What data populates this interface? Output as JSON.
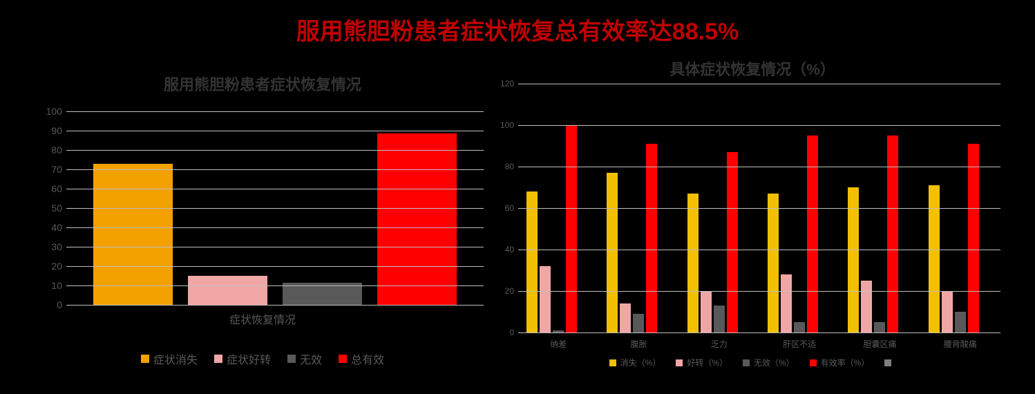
{
  "background_color": "#000000",
  "main_title": {
    "text": "服用熊胆粉患者症状恢复总有效率达88.5%",
    "color": "#c00000",
    "fontsize": 34
  },
  "chart1": {
    "type": "bar",
    "title": "服用熊胆粉患者症状恢复情况",
    "title_color": "#404040",
    "title_fontsize": 22,
    "ymin": 0,
    "ymax": 100,
    "ytick_step": 10,
    "yticks": [
      0,
      10,
      20,
      30,
      40,
      50,
      60,
      70,
      80,
      90,
      100
    ],
    "grid_color": "#bfbfbf",
    "axis_label_color": "#595959",
    "x_axis_label": "症状恢复情况",
    "series": [
      {
        "label": "症状消失",
        "value": 73,
        "color": "#f2a100"
      },
      {
        "label": "症状好转",
        "value": 15,
        "color": "#f1a6a6"
      },
      {
        "label": "无效",
        "value": 11.5,
        "color": "#595959"
      },
      {
        "label": "总有效",
        "value": 88.5,
        "color": "#ff0000"
      }
    ],
    "legend_swatch": true
  },
  "chart2": {
    "type": "grouped-bar",
    "title": "具体症状恢复情况（%）",
    "title_color": "#404040",
    "title_fontsize": 22,
    "ymin": 0,
    "ymax": 120,
    "ytick_step": 20,
    "yticks": [
      0,
      20,
      40,
      60,
      80,
      100,
      120
    ],
    "grid_color": "#bfbfbf",
    "axis_label_color": "#595959",
    "categories": [
      "纳差",
      "腹胀",
      "乏力",
      "肝区不适",
      "胆囊区痛",
      "腰背酸痛"
    ],
    "series": [
      {
        "label": "消失（%）",
        "color": "#f2c000",
        "values": [
          68,
          77,
          67,
          67,
          70,
          71
        ]
      },
      {
        "label": "好转（%）",
        "color": "#f1a6a6",
        "values": [
          32,
          14,
          20,
          28,
          25,
          20
        ]
      },
      {
        "label": "无效（%）",
        "color": "#595959",
        "values": [
          1,
          9,
          13,
          5,
          5,
          10
        ]
      },
      {
        "label": "有效率（%）",
        "color": "#ff0000",
        "values": [
          100,
          91,
          87,
          95,
          95,
          91
        ]
      },
      {
        "label": "",
        "color": "#7f7f7f",
        "values": [
          0,
          0,
          0,
          0,
          0,
          0
        ]
      }
    ]
  }
}
